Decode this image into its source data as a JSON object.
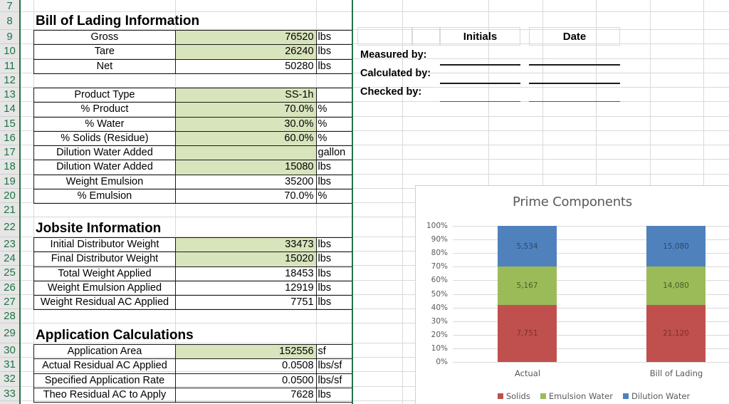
{
  "row_numbers": [
    "7",
    "8",
    "9",
    "10",
    "11",
    "12",
    "13",
    "14",
    "15",
    "16",
    "17",
    "18",
    "19",
    "20",
    "21",
    "22",
    "23",
    "24",
    "25",
    "26",
    "27",
    "28",
    "29",
    "30",
    "31",
    "32",
    "33"
  ],
  "bill_of_lading": {
    "title": "Bill of Lading Information",
    "rows": [
      {
        "label": "Gross",
        "value": "76520",
        "unit": "lbs",
        "input": true
      },
      {
        "label": "Tare",
        "value": "26240",
        "unit": "lbs",
        "input": true
      },
      {
        "label": "Net",
        "value": "50280",
        "unit": "lbs",
        "input": false
      }
    ],
    "product_rows": [
      {
        "label": "Product Type",
        "value": "SS-1h",
        "unit": "",
        "input": true
      },
      {
        "label": "% Product",
        "value": "70.0%",
        "unit": "%",
        "input": true
      },
      {
        "label": "% Water",
        "value": "30.0%",
        "unit": "%",
        "input": true
      },
      {
        "label": "% Solids (Residue)",
        "value": "60.0%",
        "unit": "%",
        "input": true
      },
      {
        "label": "Dilution Water Added",
        "value": "",
        "unit": "gallon",
        "input": true
      },
      {
        "label": "Dilution Water Added",
        "value": "15080",
        "unit": "lbs",
        "input": true
      },
      {
        "label": "Weight Emulsion",
        "value": "35200",
        "unit": "lbs",
        "input": false
      },
      {
        "label": "% Emulsion",
        "value": "70.0%",
        "unit": "%",
        "input": false
      }
    ]
  },
  "jobsite": {
    "title": "Jobsite Information",
    "rows": [
      {
        "label": "Initial Distributor Weight",
        "value": "33473",
        "unit": "lbs",
        "input": true
      },
      {
        "label": "Final Distributor Weight",
        "value": "15020",
        "unit": "lbs",
        "input": true
      },
      {
        "label": "Total Weight Applied",
        "value": "18453",
        "unit": "lbs",
        "input": false
      },
      {
        "label": "Weight Emulsion Applied",
        "value": "12919",
        "unit": "lbs",
        "input": false
      },
      {
        "label": "Weight Residual AC Applied",
        "value": "7751",
        "unit": "lbs",
        "input": false
      }
    ]
  },
  "application": {
    "title": "Application Calculations",
    "rows": [
      {
        "label": "Application Area",
        "value": "152556",
        "unit": "sf",
        "input": true
      },
      {
        "label": "Actual Residual AC Applied",
        "value": "0.0508",
        "unit": "lbs/sf",
        "input": false
      },
      {
        "label": "Specified Application Rate",
        "value": "0.0500",
        "unit": "lbs/sf",
        "input": false
      },
      {
        "label": "Theo Residual AC to Apply",
        "value": "7628",
        "unit": "lbs",
        "input": false
      }
    ]
  },
  "signoff": {
    "col_initials": "Initials",
    "col_date": "Date",
    "rows": [
      "Measured by:",
      "Calculated by:",
      "Checked by:"
    ]
  },
  "colors": {
    "input_fill": "#d8e4bc",
    "excel_green": "#217346",
    "solids": "#c0504d",
    "emulsion_water": "#9bbb59",
    "dilution_water": "#4f81bd"
  },
  "chart_data": {
    "type": "bar",
    "stacked": "percent",
    "title": "Prime Components",
    "categories": [
      "Actual",
      "Bill of Lading"
    ],
    "series": [
      {
        "name": "Solids",
        "values": [
          7751,
          21120
        ],
        "labels": [
          "7,751",
          "21,120"
        ],
        "color": "#c0504d",
        "label_color": "#7a2f2d"
      },
      {
        "name": "Emulsion Water",
        "values": [
          5167,
          14080
        ],
        "labels": [
          "5,167",
          "14,080"
        ],
        "color": "#9bbb59",
        "label_color": "#4b5e26"
      },
      {
        "name": "Dilution Water",
        "values": [
          5534,
          15080
        ],
        "labels": [
          "5,534",
          "15,080"
        ],
        "color": "#4f81bd",
        "label_color": "#2b4a70"
      }
    ],
    "y_ticks": [
      "0%",
      "10%",
      "20%",
      "30%",
      "40%",
      "50%",
      "60%",
      "70%",
      "80%",
      "90%",
      "100%"
    ],
    "ylim": [
      0,
      1
    ],
    "xlabel": "",
    "ylabel": "",
    "grid": true,
    "legend_position": "bottom"
  }
}
